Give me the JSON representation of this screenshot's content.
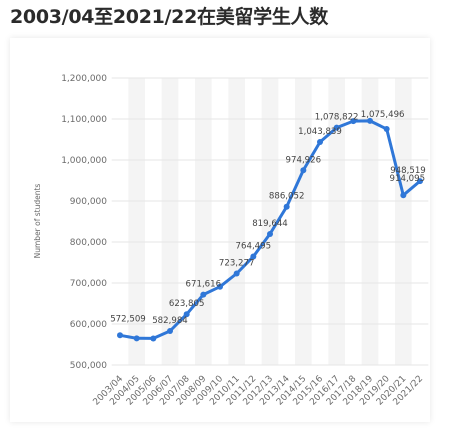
{
  "title": "2003/04至2021/22在美留学生人数",
  "chart_data": {
    "type": "line",
    "ylabel": "Number of students",
    "ylim": [
      500000,
      1200000
    ],
    "yticks": [
      500000,
      600000,
      700000,
      800000,
      900000,
      1000000,
      1100000,
      1200000
    ],
    "ytick_labels": [
      "500,000",
      "600,000",
      "700,000",
      "800,000",
      "900,000",
      "1,000,000",
      "1,100,000",
      "1,200,000"
    ],
    "categories": [
      "2003/04",
      "2004/05",
      "2005/06",
      "2006/07",
      "2007/08",
      "2008/09",
      "2009/10",
      "2010/11",
      "2011/12",
      "2012/13",
      "2013/14",
      "2014/15",
      "2015/16",
      "2016/17",
      "2017/18",
      "2018/19",
      "2019/20",
      "2020/21",
      "2021/22"
    ],
    "values": [
      572509,
      565039,
      564766,
      582984,
      623805,
      671616,
      690923,
      723277,
      764495,
      819644,
      886052,
      974926,
      1043839,
      1078822,
      1094792,
      1095299,
      1075496,
      914095,
      948519
    ],
    "data_labels": [
      "572,509",
      "",
      "",
      "582,984",
      "623,805",
      "671,616",
      "",
      "723,277",
      "764,495",
      "819,644",
      "886,052",
      "974,926",
      "1,043,839",
      "1,078,822",
      "",
      "",
      "1,075,496",
      "914,095",
      "948,519"
    ],
    "grid": true,
    "line_color": "#2f77d8"
  }
}
